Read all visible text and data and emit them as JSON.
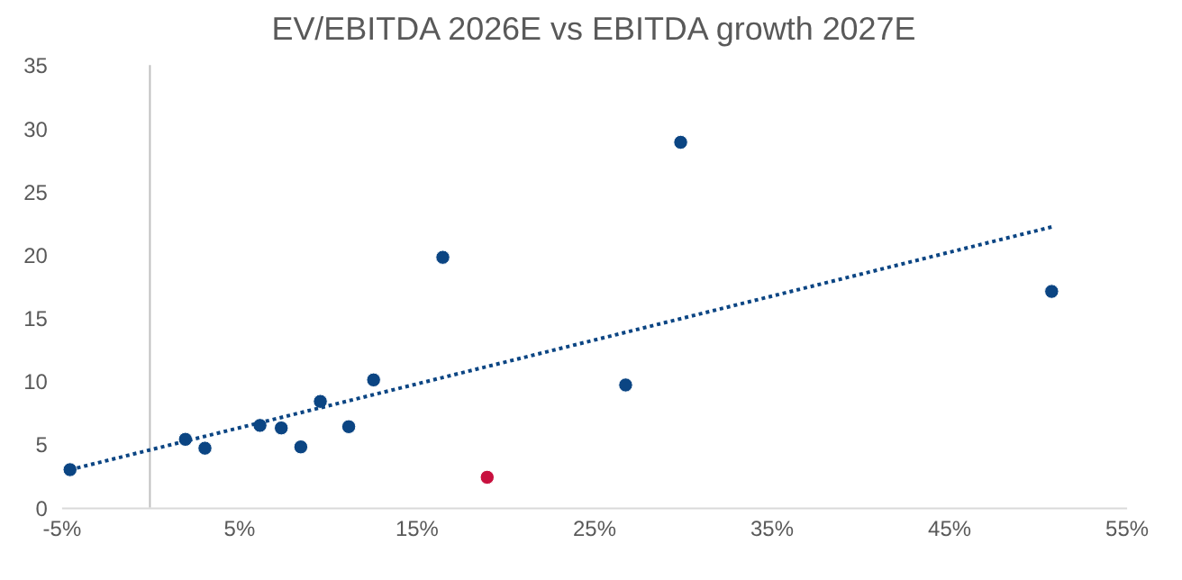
{
  "chart_data": {
    "type": "scatter",
    "title": "EV/EBITDA 2026E vs EBITDA growth 2027E",
    "xlim": [
      -5,
      55
    ],
    "xticks": [
      {
        "value": -5,
        "label": "-5%"
      },
      {
        "value": 5,
        "label": "5%"
      },
      {
        "value": 15,
        "label": "15%"
      },
      {
        "value": 25,
        "label": "25%"
      },
      {
        "value": 35,
        "label": "35%"
      },
      {
        "value": 45,
        "label": "45%"
      },
      {
        "value": 55,
        "label": "55%"
      }
    ],
    "ylim": [
      0,
      35
    ],
    "yticks": [
      0,
      5,
      10,
      15,
      20,
      25,
      30,
      35
    ],
    "grid": false,
    "ref_lines": [
      {
        "axis": "x",
        "value": 0,
        "color": "#bfbfbf"
      }
    ],
    "series": [
      {
        "marker": "circle",
        "color": "#0b4583",
        "x": [
          -4.5,
          2.0,
          3.1,
          6.2,
          7.4,
          8.5,
          9.6,
          11.2,
          12.6,
          16.5,
          19.0,
          26.8,
          29.9,
          50.8
        ],
        "values": [
          3.0,
          5.4,
          4.7,
          6.5,
          6.3,
          4.8,
          8.4,
          6.4,
          10.1,
          19.8,
          2.4,
          9.7,
          28.9,
          17.1
        ],
        "colors": [
          "#0b4583",
          "#0b4583",
          "#0b4583",
          "#0b4583",
          "#0b4583",
          "#0b4583",
          "#0b4583",
          "#0b4583",
          "#0b4583",
          "#0b4583",
          "#c8103e",
          "#0b4583",
          "#0b4583",
          "#0b4583"
        ]
      },
      {
        "type": "line",
        "color": "#0b4583",
        "line_style": "dotted",
        "marker": "none",
        "x": [
          -4.5,
          50.8
        ],
        "values": [
          3.0,
          22.2
        ]
      }
    ]
  }
}
